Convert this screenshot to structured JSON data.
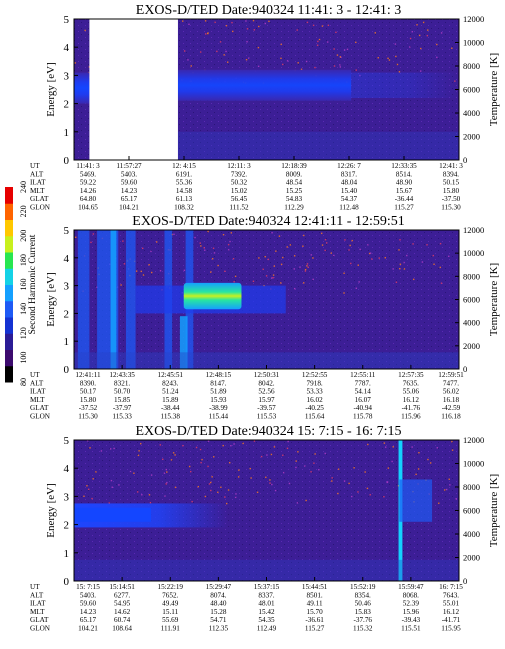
{
  "colorbar": {
    "label": "Second Harmonic Current",
    "ticks": [
      "80",
      "100",
      "120",
      "140",
      "160",
      "180",
      "200",
      "220",
      "240"
    ],
    "colors": [
      "#000000",
      "#3c0a6e",
      "#2b1c96",
      "#1432d2",
      "#1e5af5",
      "#14a0ff",
      "#14d2e6",
      "#28e650",
      "#c8f01e",
      "#ffc800",
      "#ff6400",
      "#e60000"
    ]
  },
  "panels": [
    {
      "title": "EXOS-D/TED   Date:940324  11:41: 3 - 12:41: 3",
      "ylabel": "Energy [eV]",
      "y2label": "Temperature [K]",
      "yticks": [
        "0",
        "1",
        "2",
        "3",
        "4",
        "5"
      ],
      "y2ticks": [
        "0",
        "2000",
        "4000",
        "6000",
        "8000",
        "10000",
        "12000"
      ],
      "eph_labels": [
        "UT",
        "ALT",
        "ILAT",
        "MLT",
        "GLAT",
        "GLON"
      ],
      "columns": [
        [
          "11:41: 3",
          "5469.",
          "59.22",
          "14.26",
          "64.80",
          "104.65"
        ],
        [
          "11:57:27",
          "5403.",
          "59.60",
          "14.23",
          "65.17",
          "104.21"
        ],
        [
          "12: 4:15",
          "6191.",
          "55.36",
          "14.58",
          "61.13",
          "108.32"
        ],
        [
          "12:11: 3",
          "7392.",
          "50.32",
          "15.02",
          "56.45",
          "111.52"
        ],
        [
          "12:18:39",
          "8009.",
          "48.54",
          "15.25",
          "54.83",
          "112.29"
        ],
        [
          "12:26: 7",
          "8317.",
          "48.04",
          "15.40",
          "54.37",
          "112.48"
        ],
        [
          "12:33:35",
          "8514.",
          "48.90",
          "15.67",
          "-36.44",
          "115.27"
        ],
        [
          "12:41: 3",
          "8394.",
          "50.15",
          "15.80",
          "-37.50",
          "115.30"
        ]
      ],
      "gaps": [
        [
          0.04,
          0.27
        ]
      ]
    },
    {
      "title": "EXOS-D/TED   Date:940324  12:41:11 - 12:59:51",
      "ylabel": "Energy [eV]",
      "y2label": "Temperature [K]",
      "yticks": [
        "0",
        "1",
        "2",
        "3",
        "4",
        "5"
      ],
      "y2ticks": [
        "0",
        "2000",
        "4000",
        "6000",
        "8000",
        "10000",
        "12000"
      ],
      "eph_labels": [
        "UT",
        "ALT",
        "ILAT",
        "MLT",
        "GLAT",
        "GLON"
      ],
      "columns": [
        [
          "12:41:11",
          "8390.",
          "50.17",
          "15.80",
          "-37.52",
          "115.30"
        ],
        [
          "12:43:35",
          "8321.",
          "50.70",
          "15.85",
          "-37.97",
          "115.33"
        ],
        [
          "12:45:51",
          "8243.",
          "51.24",
          "15.89",
          "-38.44",
          "115.38"
        ],
        [
          "12:48:15",
          "8147.",
          "51.89",
          "15.93",
          "-38.99",
          "115.44"
        ],
        [
          "12:50:31",
          "8042.",
          "52.56",
          "15.97",
          "-39.57",
          "115.53"
        ],
        [
          "12:52:55",
          "7918.",
          "53.33",
          "16.02",
          "-40.25",
          "115.64"
        ],
        [
          "12:55:11",
          "7787.",
          "54.14",
          "16.07",
          "-40.94",
          "115.78"
        ],
        [
          "12:57:35",
          "7635.",
          "55.06",
          "16.12",
          "-41.76",
          "115.96"
        ],
        [
          "12:59:51",
          "7477.",
          "56.02",
          "16.18",
          "-42.59",
          "116.18"
        ]
      ],
      "gaps": []
    },
    {
      "title": "EXOS-D/TED   Date:940324  15: 7:15 - 16: 7:15",
      "ylabel": "Energy [eV]",
      "y2label": "Temperature [K]",
      "yticks": [
        "0",
        "1",
        "2",
        "3",
        "4",
        "5"
      ],
      "y2ticks": [
        "0",
        "2000",
        "4000",
        "6000",
        "8000",
        "10000",
        "12000"
      ],
      "eph_labels": [
        "UT",
        "ALT",
        "ILAT",
        "MLT",
        "GLAT",
        "GLON"
      ],
      "columns": [
        [
          "15: 7:15",
          "5403.",
          "59.60",
          "14.23",
          "65.17",
          "104.21"
        ],
        [
          "15:14:51",
          "6277.",
          "54.95",
          "14.62",
          "60.74",
          "108.64"
        ],
        [
          "15:22:19",
          "7652.",
          "49.49",
          "15.11",
          "55.69",
          "111.91"
        ],
        [
          "15:29:47",
          "8074.",
          "48.40",
          "15.28",
          "54.71",
          "112.35"
        ],
        [
          "15:37:15",
          "8337.",
          "48.01",
          "15.42",
          "54.35",
          "112.49"
        ],
        [
          "15:44:51",
          "8501.",
          "49.11",
          "15.70",
          "-36.61",
          "115.27"
        ],
        [
          "15:52:19",
          "8354.",
          "50.46",
          "15.83",
          "-37.76",
          "115.32"
        ],
        [
          "15:59:47",
          "8068.",
          "52.39",
          "15.96",
          "-39.43",
          "115.51"
        ],
        [
          "16: 7:15",
          "7643.",
          "55.01",
          "16.12",
          "-41.71",
          "115.95"
        ]
      ],
      "gaps": []
    }
  ]
}
